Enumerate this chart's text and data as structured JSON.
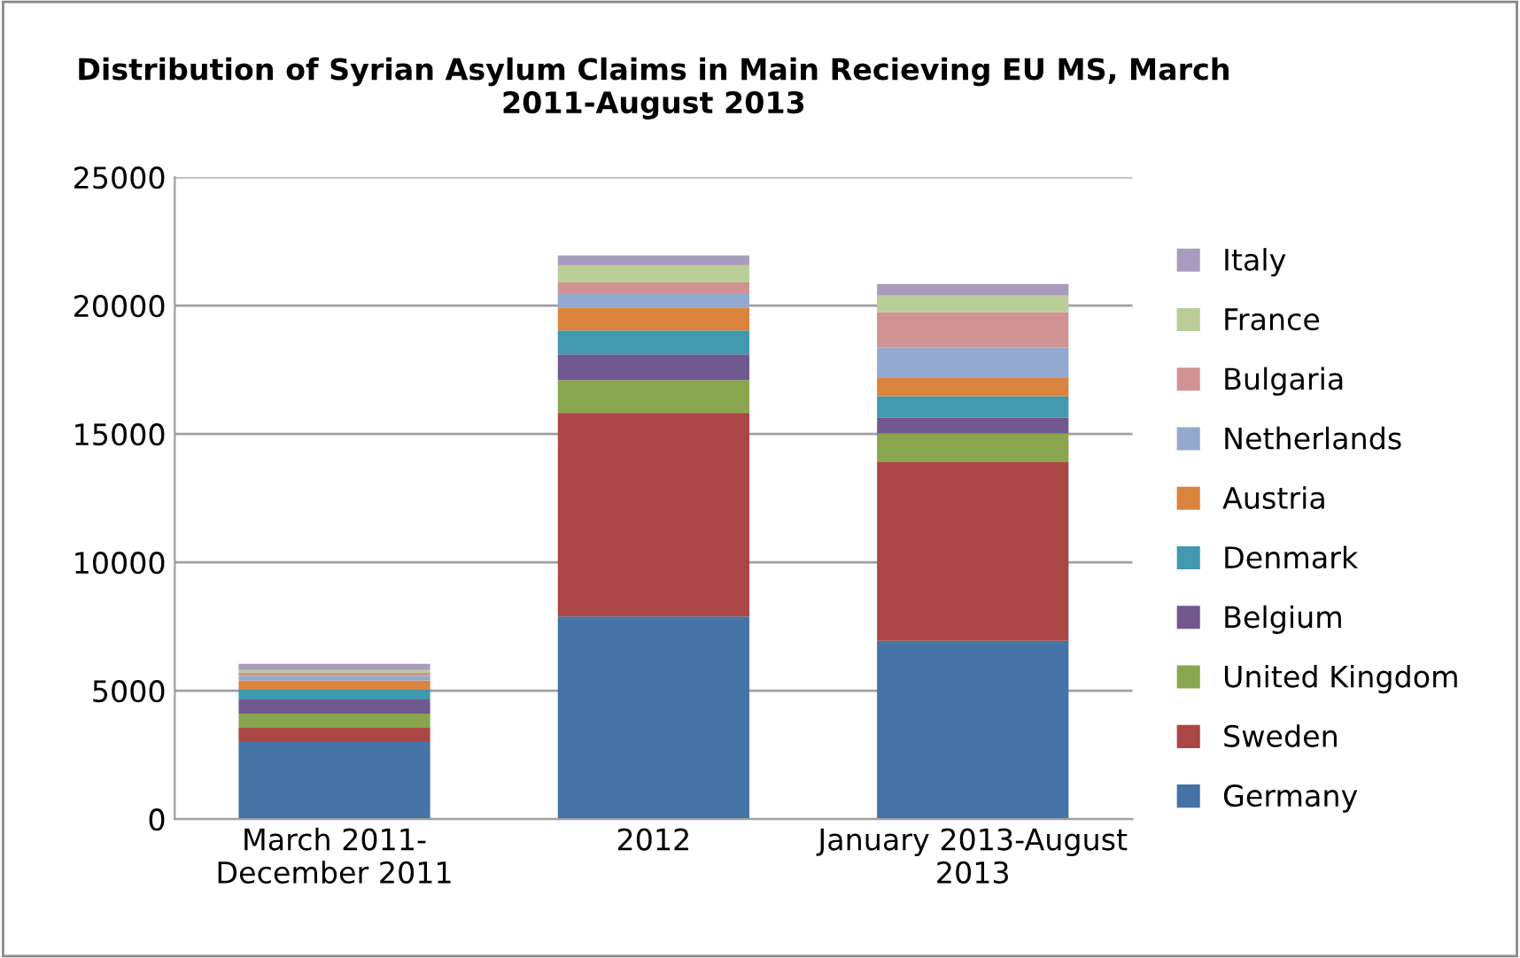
{
  "chart_data": {
    "type": "bar",
    "stacked": true,
    "title": "Distribution of Syrian Asylum Claims in Main Recieving EU MS, March 2011-August 2013",
    "categories": [
      "March 2011-\nDecember 2011",
      "2012",
      "January 2013-August\n2013"
    ],
    "series": [
      {
        "name": "Germany",
        "color": "#4572a7",
        "values": [
          3040,
          7890,
          6940
        ]
      },
      {
        "name": "Sweden",
        "color": "#aa4643",
        "values": [
          520,
          7930,
          6960
        ]
      },
      {
        "name": "United Kingdom",
        "color": "#89a54e",
        "values": [
          550,
          1280,
          1120
        ]
      },
      {
        "name": "Belgium",
        "color": "#71588f",
        "values": [
          550,
          1000,
          620
        ]
      },
      {
        "name": "Denmark",
        "color": "#4198af",
        "values": [
          380,
          930,
          830
        ]
      },
      {
        "name": "Austria",
        "color": "#db843d",
        "values": [
          360,
          900,
          710
        ]
      },
      {
        "name": "Netherlands",
        "color": "#93a9cf",
        "values": [
          170,
          520,
          1190
        ]
      },
      {
        "name": "Bulgaria",
        "color": "#d19392",
        "values": [
          120,
          450,
          1380
        ]
      },
      {
        "name": "France",
        "color": "#b9cd96",
        "values": [
          120,
          670,
          640
        ]
      },
      {
        "name": "Italy",
        "color": "#a99bbd",
        "values": [
          240,
          380,
          450
        ]
      }
    ],
    "ylim": [
      0,
      25000
    ],
    "yticks": [
      0,
      5000,
      10000,
      15000,
      20000,
      25000
    ],
    "grid": "y",
    "legend": "right"
  }
}
